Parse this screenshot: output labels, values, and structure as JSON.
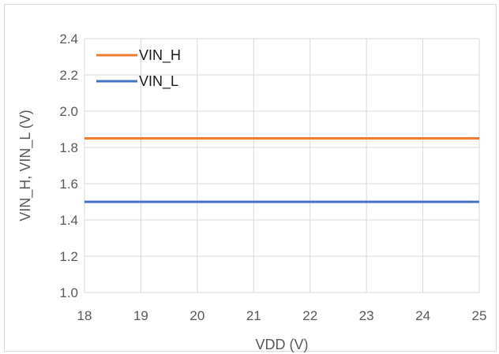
{
  "chart_data": {
    "type": "line",
    "title": "",
    "xlabel": "VDD (V)",
    "ylabel": "VIN_H, VIN_L (V)",
    "xlim": [
      18,
      25
    ],
    "ylim": [
      1.0,
      2.4
    ],
    "x_ticks": [
      "18",
      "19",
      "20",
      "21",
      "22",
      "23",
      "24",
      "25"
    ],
    "y_ticks": [
      "1.0",
      "1.2",
      "1.4",
      "1.6",
      "1.8",
      "2.0",
      "2.2",
      "2.4"
    ],
    "grid": true,
    "legend_position": "top-left",
    "series": [
      {
        "name": "VIN_H",
        "color": "#ed7d31",
        "x": [
          18,
          19,
          20,
          21,
          22,
          23,
          24,
          25
        ],
        "values": [
          1.85,
          1.85,
          1.85,
          1.85,
          1.85,
          1.85,
          1.85,
          1.85
        ]
      },
      {
        "name": "VIN_L",
        "color": "#4472c4",
        "x": [
          18,
          19,
          20,
          21,
          22,
          23,
          24,
          25
        ],
        "values": [
          1.5,
          1.5,
          1.5,
          1.5,
          1.5,
          1.5,
          1.5,
          1.5
        ]
      }
    ]
  }
}
